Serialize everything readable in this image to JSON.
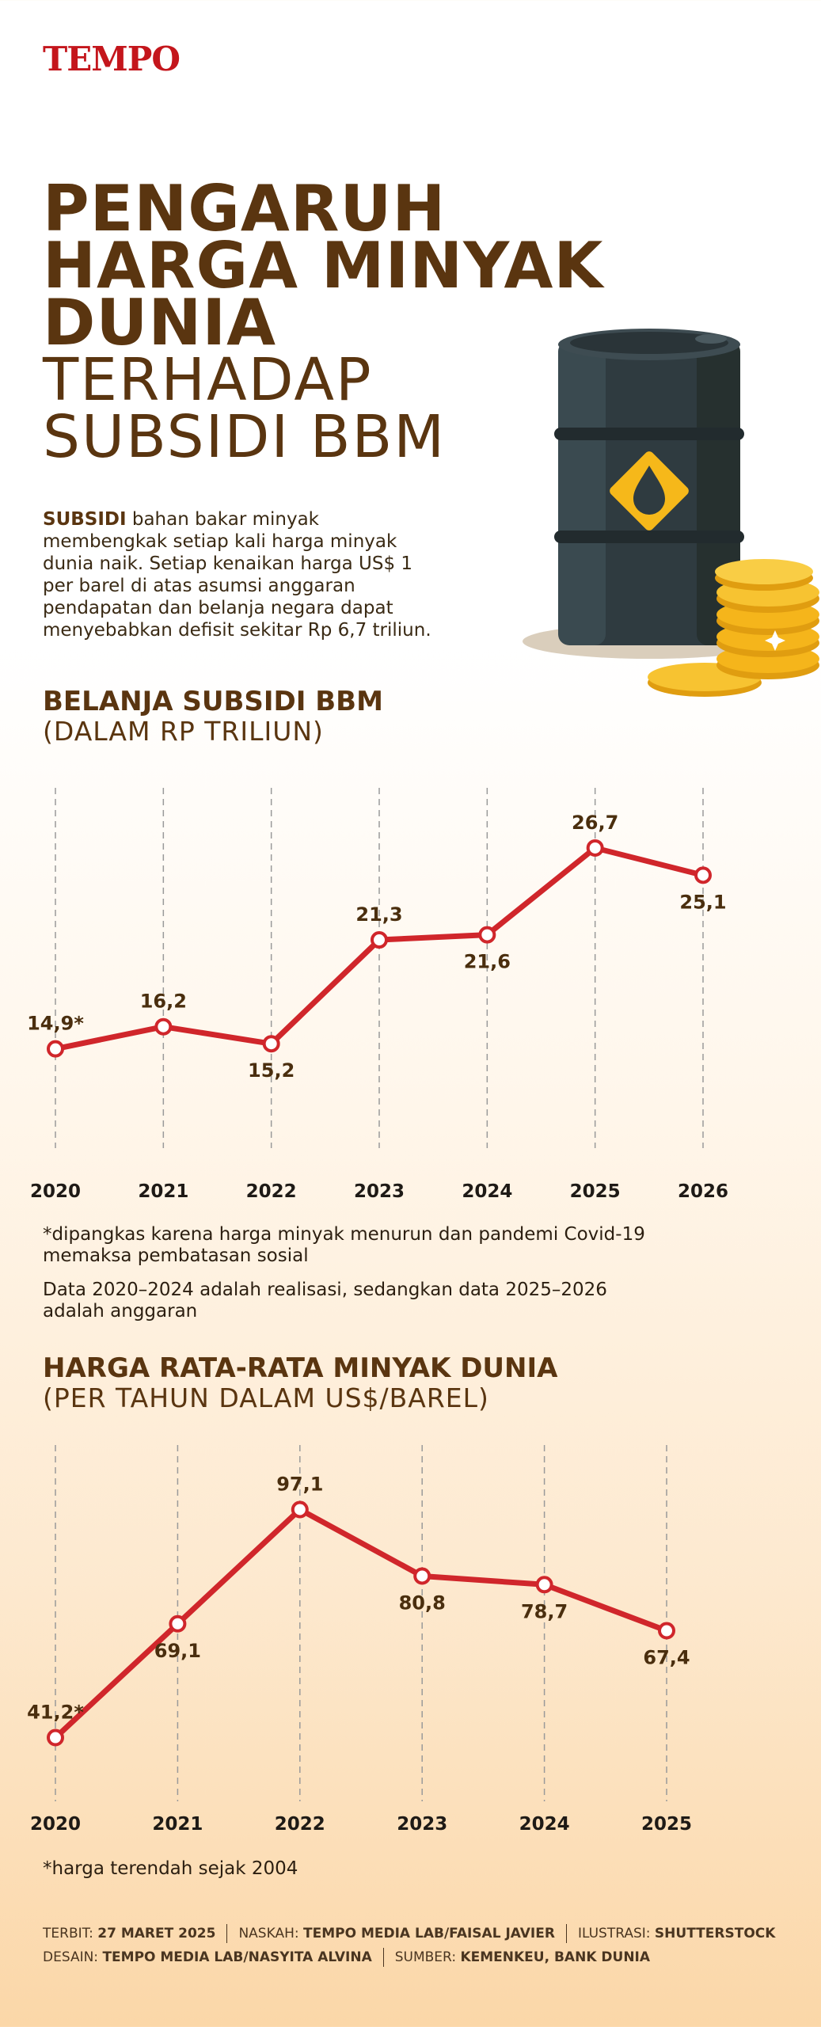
{
  "brand": "TEMPO",
  "title_bold": [
    "PENGARUH",
    "HARGA MINYAK",
    "DUNIA"
  ],
  "title_light": [
    "TERHADAP",
    "SUBSIDI BBM"
  ],
  "intro": {
    "lead": "SUBSIDI",
    "lines": [
      " bahan bakar minyak",
      "membengkak setiap kali harga minyak",
      "dunia naik. Setiap kenaikan harga US$ 1",
      "per barel di atas asumsi anggaran",
      "pendapatan dan belanja negara dapat",
      "menyebabkan defisit sekitar Rp 6,7 triliun."
    ]
  },
  "chart_data": [
    {
      "type": "line",
      "title": "BELANJA SUBSIDI BBM",
      "subtitle": "(DALAM RP TRILIUN)",
      "categories": [
        "2020",
        "2021",
        "2022",
        "2023",
        "2024",
        "2025",
        "2026"
      ],
      "values": [
        14.9,
        16.2,
        15.2,
        21.3,
        21.6,
        26.7,
        25.1
      ],
      "labels": [
        "14,9*",
        "16,2",
        "15,2",
        "21,3",
        "21,6",
        "26,7",
        "25,1"
      ],
      "label_pos": [
        "above",
        "above",
        "below",
        "above",
        "below",
        "above",
        "below"
      ],
      "ylim": [
        10,
        30
      ],
      "grid": "vertical dashed",
      "line_color": "#d0262b"
    },
    {
      "type": "line",
      "title": "HARGA RATA-RATA MINYAK DUNIA",
      "subtitle": "(PER TAHUN DALAM US$/BAREL)",
      "categories": [
        "2020",
        "2021",
        "2022",
        "2023",
        "2024",
        "2025"
      ],
      "values": [
        41.2,
        69.1,
        97.1,
        80.8,
        78.7,
        67.4
      ],
      "labels": [
        "41,2*",
        "69,1",
        "97,1",
        "80,8",
        "78,7",
        "67,4"
      ],
      "label_pos": [
        "above",
        "below",
        "above",
        "below",
        "below",
        "below"
      ],
      "ylim": [
        25,
        110
      ],
      "grid": "vertical dashed",
      "line_color": "#d0262b"
    }
  ],
  "notes1": [
    "*dipangkas karena harga minyak menurun dan pandemi Covid-19",
    "memaksa pembatasan sosial"
  ],
  "notes2": [
    "Data 2020–2024 adalah realisasi, sedangkan data 2025–2026",
    "adalah anggaran"
  ],
  "note3": "*harga terendah sejak 2004",
  "credits": {
    "terbit_label": "TERBIT:",
    "terbit": "27 MARET 2025",
    "naskah_label": "NASKAH:",
    "naskah": "TEMPO MEDIA LAB/FAISAL JAVIER",
    "ilustrasi_label": "ILUSTRASI:",
    "ilustrasi": "SHUTTERSTOCK",
    "desain_label": "DESAIN:",
    "desain": "TEMPO MEDIA LAB/NASYITA ALVINA",
    "sumber_label": "SUMBER:",
    "sumber": "KEMENKEU, BANK DUNIA"
  },
  "colors": {
    "brand": "#c4161c",
    "heading": "#5a3510",
    "line": "#d0262b",
    "barrel": "#2f3b40",
    "drop_sign": "#f6b81a",
    "coin": "#f5b51b"
  },
  "icons": [
    "oil-barrel-illustration",
    "oil-drop-icon",
    "gold-coins-illustration"
  ]
}
